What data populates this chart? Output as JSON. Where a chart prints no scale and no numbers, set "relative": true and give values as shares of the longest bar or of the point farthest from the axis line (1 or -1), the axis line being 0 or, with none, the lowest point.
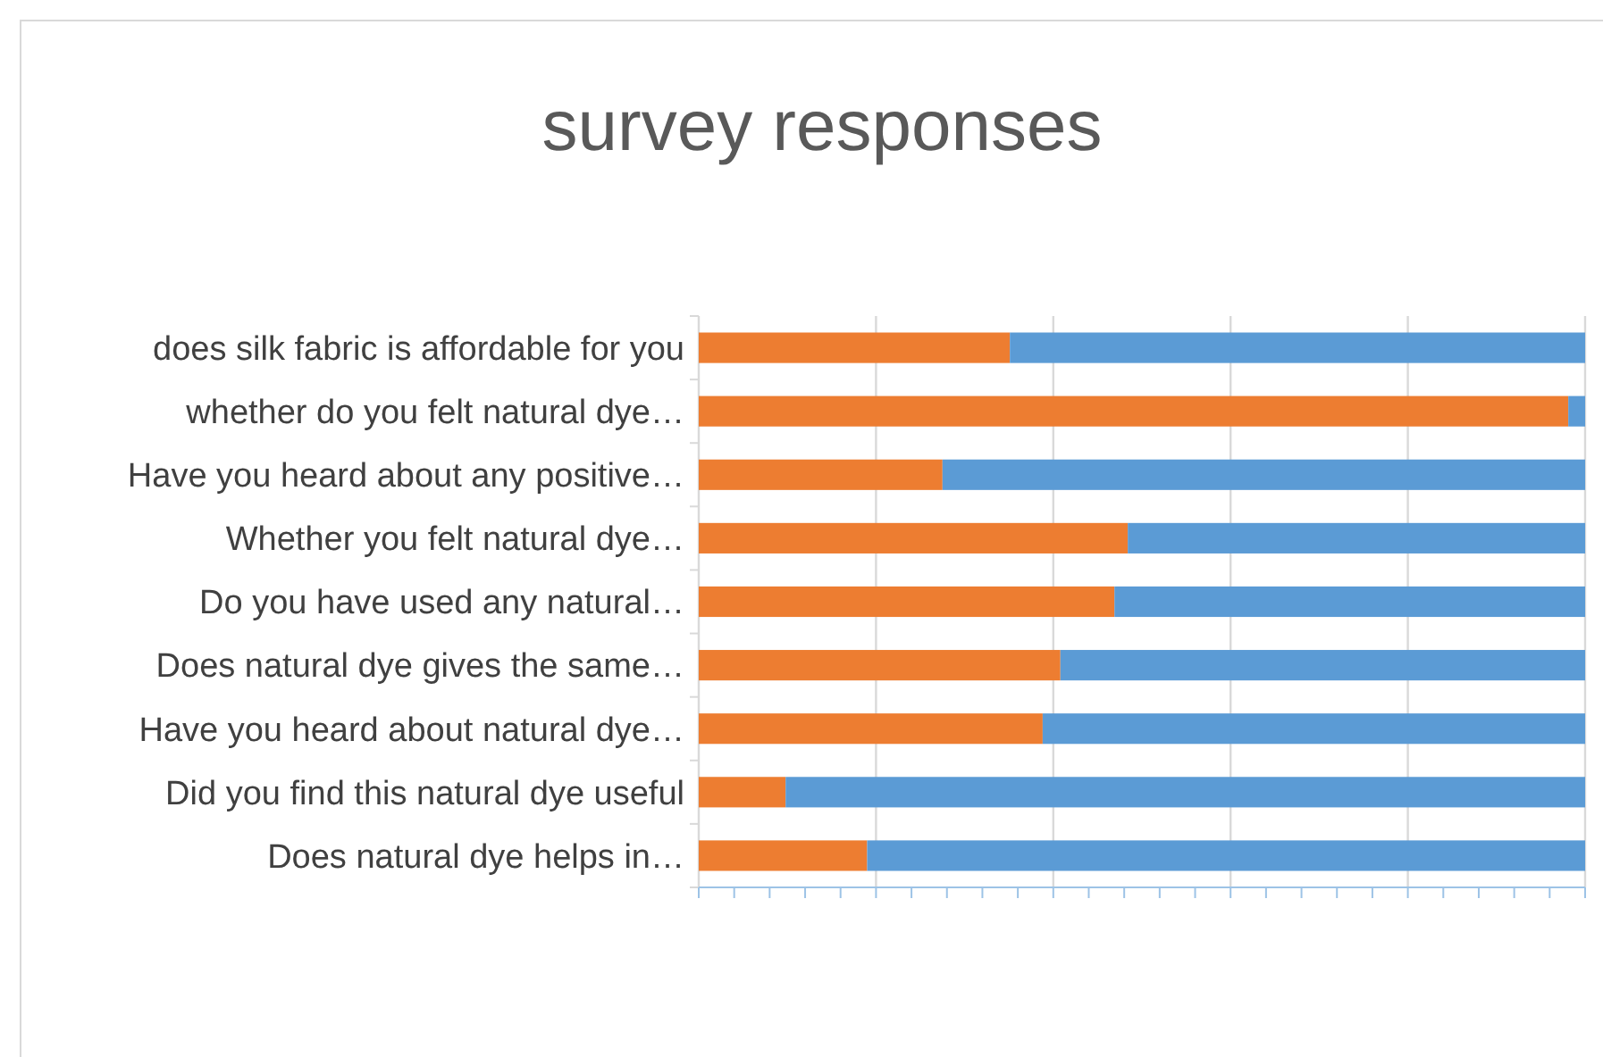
{
  "chart_data": {
    "type": "bar",
    "title": "survey responses",
    "orientation": "horizontal",
    "stacked": true,
    "relative": true,
    "grid": "x",
    "categories": [
      "does silk fabric is affordable for you",
      "whether do you felt natural dye…",
      "Have you heard about any positive…",
      "Whether you felt natural dye…",
      "Do you have used any natural…",
      "Does natural dye gives the same…",
      "Have you heard about natural dye…",
      "Did you find this natural dye useful",
      "Does natural dye helps in…"
    ],
    "series": [
      {
        "color": "#ed7d31",
        "values": [
          0.351,
          0.981,
          0.275,
          0.484,
          0.469,
          0.408,
          0.388,
          0.098,
          0.19
        ]
      },
      {
        "color": "#5b9bd5",
        "values": [
          0.649,
          0.019,
          0.725,
          0.516,
          0.531,
          0.592,
          0.612,
          0.902,
          0.81
        ]
      }
    ]
  }
}
